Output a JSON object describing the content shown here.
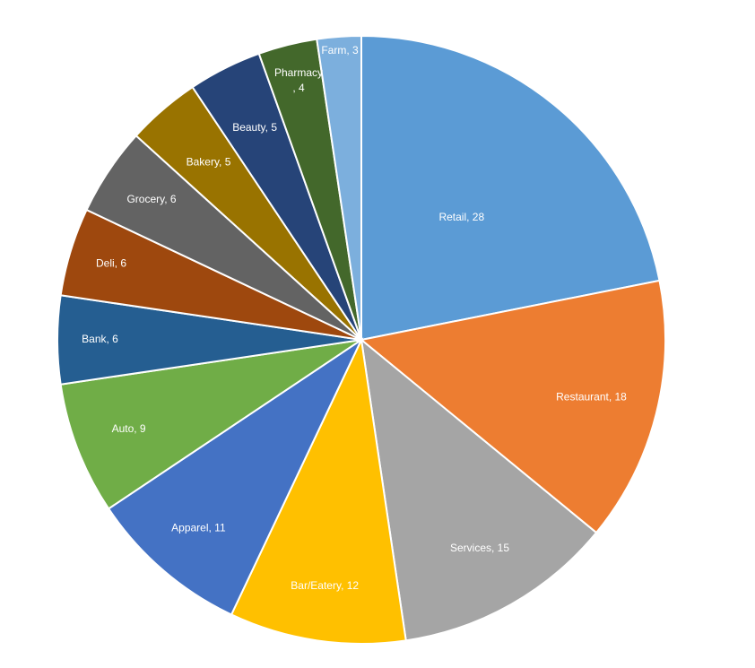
{
  "chart_data": {
    "type": "pie",
    "title": "",
    "start_angle_deg": 0,
    "direction": "clockwise",
    "slices": [
      {
        "label": "Retail",
        "value": 28,
        "display": "Retail, 28",
        "color": "#5B9BD5"
      },
      {
        "label": "Restaurant",
        "value": 18,
        "display": "Restaurant, 18",
        "color": "#ED7D31"
      },
      {
        "label": "Services",
        "value": 15,
        "display": "Services, 15",
        "color": "#A5A5A5"
      },
      {
        "label": "Bar/Eatery",
        "value": 12,
        "display": "Bar/Eatery, 12",
        "color": "#FFC000"
      },
      {
        "label": "Apparel",
        "value": 11,
        "display": "Apparel, 11",
        "color": "#4472C4"
      },
      {
        "label": "Auto",
        "value": 9,
        "display": "Auto, 9",
        "color": "#70AD47"
      },
      {
        "label": "Bank",
        "value": 6,
        "display": "Bank, 6",
        "color": "#255E91"
      },
      {
        "label": "Deli",
        "value": 6,
        "display": "Deli, 6",
        "color": "#9E480E"
      },
      {
        "label": "Grocery",
        "value": 6,
        "display": "Grocery, 6",
        "color": "#636363"
      },
      {
        "label": "Bakery",
        "value": 5,
        "display": "Bakery, 5",
        "color": "#997300"
      },
      {
        "label": "Beauty",
        "value": 5,
        "display": "Beauty, 5",
        "color": "#264478"
      },
      {
        "label": "Pharmacy",
        "value": 4,
        "display": "Pharmacy, 4",
        "color": "#43682B"
      },
      {
        "label": "Farm",
        "value": 3,
        "display": "Farm, 3",
        "color": "#7CAFDD"
      }
    ]
  }
}
